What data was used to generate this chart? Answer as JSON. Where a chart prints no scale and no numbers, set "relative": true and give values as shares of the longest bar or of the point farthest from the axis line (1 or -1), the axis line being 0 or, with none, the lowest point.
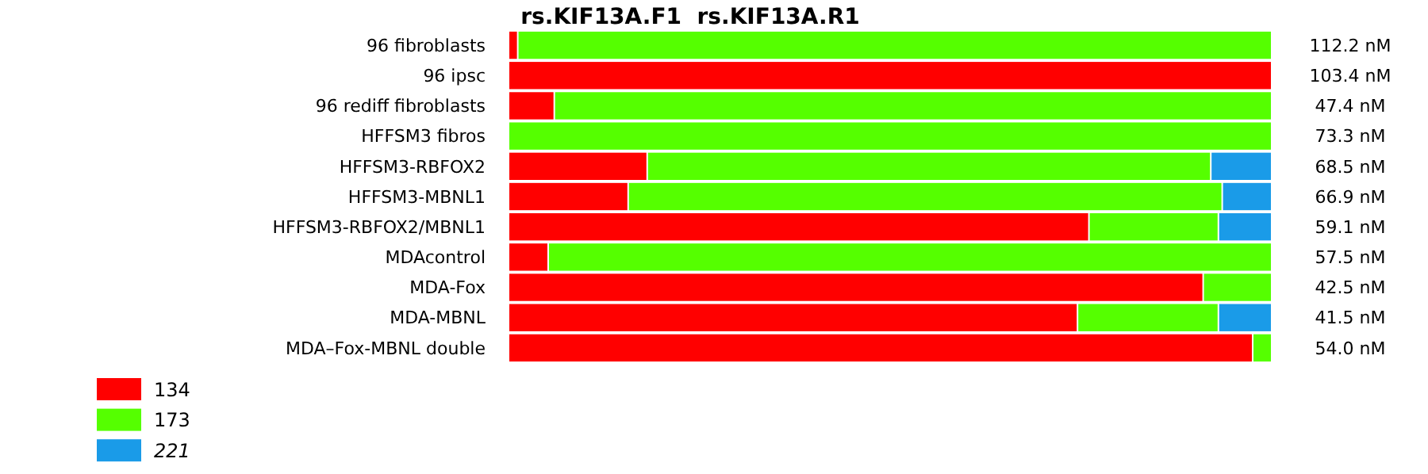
{
  "chart_data": {
    "type": "bar",
    "title": "rs.KIF13A.F1  rs.KIF13A.R1",
    "orientation": "horizontal",
    "stacked": true,
    "relative": true,
    "legend": "bottom left",
    "categories": [
      "96 fibroblasts",
      "96 ipsc",
      "96 rediff fibroblasts",
      "HFFSM3 fibros",
      "HFFSM3-RBFOX2",
      "HFFSM3-MBNL1",
      "HFFSM3-RBFOX2/MBNL1",
      "MDAcontrol",
      "MDA-Fox",
      "MDA-MBNL",
      "MDA–Fox-MBNL double"
    ],
    "series": [
      {
        "name": "134",
        "color": "#ff0000",
        "values": [
          0.01,
          1,
          0.058,
          0,
          0.18,
          0.155,
          0.76,
          0.05,
          0.91,
          0.745,
          0.975
        ]
      },
      {
        "name": "173",
        "color": "#55ff00",
        "values": [
          0.99,
          0,
          0.942,
          1,
          0.74,
          0.78,
          0.17,
          0.95,
          0.09,
          0.185,
          0.025
        ]
      },
      {
        "name": "221",
        "color": "#1a9be8",
        "values": [
          0,
          0,
          0,
          0,
          0.08,
          0.065,
          0.07,
          0,
          0,
          0.07,
          0
        ]
      }
    ],
    "annotations": [
      "112.2 nM",
      "103.4 nM",
      "47.4 nM",
      "73.3 nM",
      "68.5 nM",
      "66.9 nM",
      "59.1 nM",
      "57.5 nM",
      "42.5 nM",
      "41.5 nM",
      "54.0 nM"
    ]
  }
}
